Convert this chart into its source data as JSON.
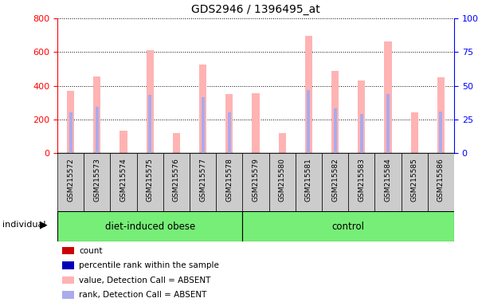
{
  "title": "GDS2946 / 1396495_at",
  "samples": [
    "GSM215572",
    "GSM215573",
    "GSM215574",
    "GSM215575",
    "GSM215576",
    "GSM215577",
    "GSM215578",
    "GSM215579",
    "GSM215580",
    "GSM215581",
    "GSM215582",
    "GSM215583",
    "GSM215584",
    "GSM215585",
    "GSM215586"
  ],
  "group1_name": "diet-induced obese",
  "group1_count": 7,
  "group2_name": "control",
  "group2_count": 8,
  "group_color": "#77ee77",
  "absent_values": [
    370,
    453,
    133,
    610,
    120,
    524,
    350,
    355,
    120,
    695,
    487,
    430,
    665,
    240,
    450
  ],
  "absent_ranks": [
    240,
    275,
    0,
    348,
    0,
    333,
    240,
    0,
    0,
    375,
    265,
    233,
    350,
    0,
    245
  ],
  "ylim_left": [
    0,
    800
  ],
  "ylim_right": [
    0,
    100
  ],
  "yticks_left": [
    0,
    200,
    400,
    600,
    800
  ],
  "yticks_right": [
    0,
    25,
    50,
    75,
    100
  ],
  "absent_bar_color": "#ffb3b3",
  "absent_rank_color": "#aaaaee",
  "tick_label_bg": "#cccccc",
  "plot_bg": "#ffffff",
  "legend_items": [
    {
      "label": "count",
      "color": "#cc0000"
    },
    {
      "label": "percentile rank within the sample",
      "color": "#0000bb"
    },
    {
      "label": "value, Detection Call = ABSENT",
      "color": "#ffb3b3"
    },
    {
      "label": "rank, Detection Call = ABSENT",
      "color": "#aaaaee"
    }
  ]
}
